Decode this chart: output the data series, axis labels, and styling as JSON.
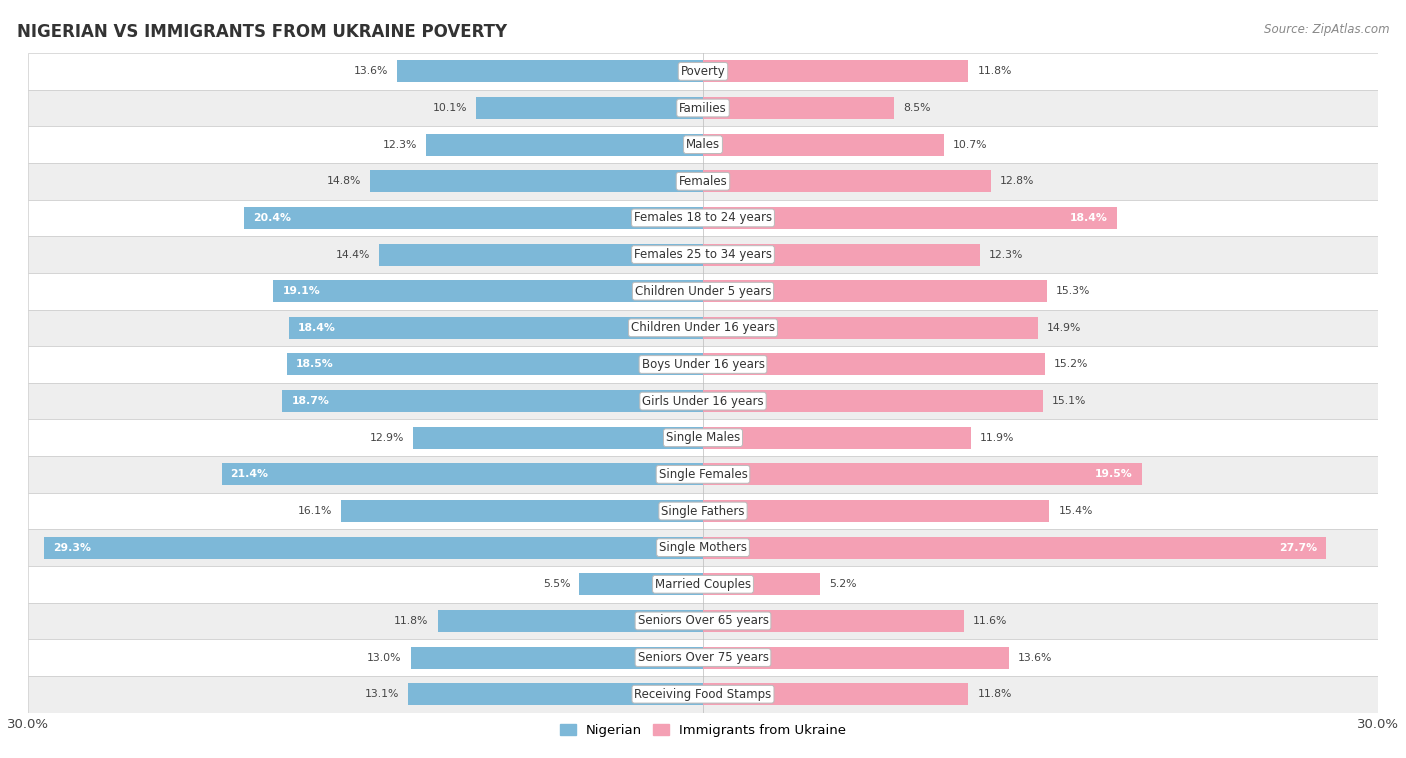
{
  "title": "NIGERIAN VS IMMIGRANTS FROM UKRAINE POVERTY",
  "source": "Source: ZipAtlas.com",
  "categories": [
    "Poverty",
    "Families",
    "Males",
    "Females",
    "Females 18 to 24 years",
    "Females 25 to 34 years",
    "Children Under 5 years",
    "Children Under 16 years",
    "Boys Under 16 years",
    "Girls Under 16 years",
    "Single Males",
    "Single Females",
    "Single Fathers",
    "Single Mothers",
    "Married Couples",
    "Seniors Over 65 years",
    "Seniors Over 75 years",
    "Receiving Food Stamps"
  ],
  "nigerian": [
    13.6,
    10.1,
    12.3,
    14.8,
    20.4,
    14.4,
    19.1,
    18.4,
    18.5,
    18.7,
    12.9,
    21.4,
    16.1,
    29.3,
    5.5,
    11.8,
    13.0,
    13.1
  ],
  "ukraine": [
    11.8,
    8.5,
    10.7,
    12.8,
    18.4,
    12.3,
    15.3,
    14.9,
    15.2,
    15.1,
    11.9,
    19.5,
    15.4,
    27.7,
    5.2,
    11.6,
    13.6,
    11.8
  ],
  "nigerian_color": "#7DB8D8",
  "ukraine_color": "#F4A0B4",
  "row_bg_light": "#FFFFFF",
  "row_bg_dark": "#EEEEEE",
  "xlim": 30.0,
  "legend_nigerian": "Nigerian",
  "legend_ukraine": "Immigrants from Ukraine",
  "white_label_threshold_nig": 18.0,
  "white_label_threshold_ukr": 18.0
}
